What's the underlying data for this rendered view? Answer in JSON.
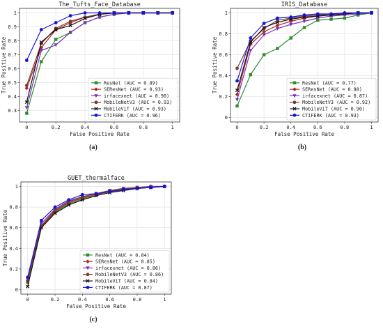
{
  "chart_data": [
    {
      "type": "line",
      "title": "The_Tufts_Face_Database",
      "xlabel": "False Positive Rate",
      "ylabel": "True Positive Rate",
      "xlim": [
        0,
        1
      ],
      "ylim": [
        0.25,
        1.0
      ],
      "xticks": [
        "0",
        "0.2",
        "0.4",
        "0.6",
        "0.8",
        "1"
      ],
      "yticks": [
        "0.3",
        "0.4",
        "0.5",
        "0.6",
        "0.7",
        "0.8",
        "0.9",
        "1"
      ],
      "legend_position": "bottom-right",
      "caption": "(a)",
      "series": [
        {
          "name": "ResNet (AUC = 0.89)",
          "color": "#2e8b2e",
          "marker": "square",
          "x": [
            0,
            0.1,
            0.2,
            0.3,
            0.4,
            0.5,
            0.6,
            0.7,
            0.8,
            0.9,
            1.0
          ],
          "y": [
            0.28,
            0.65,
            0.81,
            0.86,
            0.93,
            0.97,
            0.99,
            1.0,
            1.0,
            1.0,
            1.0
          ]
        },
        {
          "name": "SEResNet (AUC = 0.93)",
          "color": "#b22222",
          "marker": "diamond",
          "x": [
            0,
            0.1,
            0.2,
            0.3,
            0.4,
            0.5,
            0.6,
            0.7,
            0.8,
            0.9,
            1.0
          ],
          "y": [
            0.46,
            0.75,
            0.88,
            0.93,
            0.97,
            0.99,
            1.0,
            1.0,
            1.0,
            1.0,
            1.0
          ]
        },
        {
          "name": "irfacexnet (AUC = 0.90)",
          "color": "#7b2fbf",
          "marker": "triangle-down",
          "x": [
            0,
            0.1,
            0.2,
            0.3,
            0.4,
            0.5,
            0.6,
            0.7,
            0.8,
            0.9,
            1.0
          ],
          "y": [
            0.32,
            0.73,
            0.77,
            0.86,
            0.93,
            0.97,
            0.99,
            1.0,
            1.0,
            1.0,
            1.0
          ]
        },
        {
          "name": "MobileNetV3 (AUC = 0.93)",
          "color": "#7a3b2e",
          "marker": "circle",
          "x": [
            0,
            0.1,
            0.2,
            0.3,
            0.4,
            0.5,
            0.6,
            0.7,
            0.8,
            0.9,
            1.0
          ],
          "y": [
            0.48,
            0.78,
            0.89,
            0.94,
            0.97,
            0.99,
            1.0,
            1.0,
            1.0,
            1.0,
            1.0
          ]
        },
        {
          "name": "MobileViT (AUC = 0.93)",
          "color": "#111111",
          "marker": "x",
          "x": [
            0,
            0.1,
            0.2,
            0.3,
            0.4,
            0.5,
            0.6,
            0.7,
            0.8,
            0.9,
            1.0
          ],
          "y": [
            0.36,
            0.79,
            0.88,
            0.91,
            0.96,
            0.99,
            1.0,
            1.0,
            1.0,
            1.0,
            1.0
          ]
        },
        {
          "name": "CTIFERK (AUC = 0.96)",
          "color": "#1414d9",
          "marker": "circle",
          "x": [
            0,
            0.1,
            0.2,
            0.3,
            0.4,
            0.5,
            0.6,
            0.7,
            0.8,
            0.9,
            1.0
          ],
          "y": [
            0.66,
            0.88,
            0.93,
            0.98,
            1.0,
            1.0,
            1.0,
            1.0,
            1.0,
            1.0,
            1.0
          ]
        }
      ]
    },
    {
      "type": "line",
      "title": "IRIS_Database",
      "xlabel": "False Positive Rate",
      "ylabel": "True Positive Rate",
      "xlim": [
        0,
        1
      ],
      "ylim": [
        0,
        1.0
      ],
      "xticks": [
        "0",
        "0.2",
        "0.4",
        "0.6",
        "0.8",
        "1"
      ],
      "yticks": [
        "0",
        "0.2",
        "0.4",
        "0.6",
        "0.8",
        "1"
      ],
      "legend_position": "bottom-right",
      "caption": "(b)",
      "series": [
        {
          "name": "ResNet (AUC = 0.77)",
          "color": "#2e8b2e",
          "marker": "square",
          "x": [
            0,
            0.1,
            0.2,
            0.3,
            0.4,
            0.5,
            0.6,
            0.7,
            0.8,
            0.9,
            1.0
          ],
          "y": [
            0.11,
            0.41,
            0.6,
            0.66,
            0.76,
            0.86,
            0.93,
            0.94,
            0.95,
            0.98,
            1.0
          ]
        },
        {
          "name": "SEResNet (AUC = 0.88)",
          "color": "#b22222",
          "marker": "diamond",
          "x": [
            0,
            0.1,
            0.2,
            0.3,
            0.4,
            0.5,
            0.6,
            0.7,
            0.8,
            0.9,
            1.0
          ],
          "y": [
            0.22,
            0.7,
            0.82,
            0.88,
            0.92,
            0.95,
            0.97,
            0.98,
            0.99,
            1.0,
            1.0
          ]
        },
        {
          "name": "irfacexnet (AUC = 0.87)",
          "color": "#7b2fbf",
          "marker": "triangle-down",
          "x": [
            0,
            0.1,
            0.2,
            0.3,
            0.4,
            0.5,
            0.6,
            0.7,
            0.8,
            0.9,
            1.0
          ],
          "y": [
            0.17,
            0.64,
            0.79,
            0.85,
            0.89,
            0.92,
            0.95,
            0.97,
            0.98,
            0.99,
            1.0
          ]
        },
        {
          "name": "MobileNetV3 (AUC = 0.92)",
          "color": "#7a3b2e",
          "marker": "circle",
          "x": [
            0,
            0.1,
            0.2,
            0.3,
            0.4,
            0.5,
            0.6,
            0.7,
            0.8,
            0.9,
            1.0
          ],
          "y": [
            0.47,
            0.73,
            0.85,
            0.93,
            0.95,
            0.97,
            0.98,
            0.99,
            1.0,
            1.0,
            1.0
          ]
        },
        {
          "name": "MobileViT (AUC = 0.90)",
          "color": "#111111",
          "marker": "x",
          "x": [
            0,
            0.1,
            0.2,
            0.3,
            0.4,
            0.5,
            0.6,
            0.7,
            0.8,
            0.9,
            1.0
          ],
          "y": [
            0.26,
            0.72,
            0.86,
            0.91,
            0.94,
            0.96,
            0.97,
            0.98,
            0.99,
            1.0,
            1.0
          ]
        },
        {
          "name": "CTIFERK (AUC = 0.93)",
          "color": "#1414d9",
          "marker": "circle",
          "x": [
            0,
            0.1,
            0.2,
            0.3,
            0.4,
            0.5,
            0.6,
            0.7,
            0.8,
            0.9,
            1.0
          ],
          "y": [
            0.35,
            0.76,
            0.9,
            0.95,
            0.96,
            0.98,
            0.99,
            0.99,
            1.0,
            1.0,
            1.0
          ]
        }
      ]
    },
    {
      "type": "line",
      "title": "GUET_thermalface",
      "xlabel": "False Positive Rate",
      "ylabel": "True Positive Rate",
      "xlim": [
        0,
        1
      ],
      "ylim": [
        0,
        1.0
      ],
      "xticks": [
        "0",
        "0.2",
        "0.4",
        "0.6",
        "0.8",
        "1"
      ],
      "yticks": [
        "0",
        "0.2",
        "0.4",
        "0.6",
        "0.8",
        "1"
      ],
      "legend_position": "bottom-right",
      "caption": "(c)",
      "series": [
        {
          "name": "ResNet (AUC = 0.84)",
          "color": "#2e8b2e",
          "marker": "square",
          "x": [
            0,
            0.1,
            0.2,
            0.3,
            0.4,
            0.5,
            0.6,
            0.7,
            0.8,
            0.9,
            1.0
          ],
          "y": [
            0.07,
            0.61,
            0.75,
            0.83,
            0.88,
            0.92,
            0.95,
            0.97,
            0.98,
            0.99,
            1.0
          ]
        },
        {
          "name": "SEResNet (AUC = 0.85)",
          "color": "#b22222",
          "marker": "diamond",
          "x": [
            0,
            0.1,
            0.2,
            0.3,
            0.4,
            0.5,
            0.6,
            0.7,
            0.8,
            0.9,
            1.0
          ],
          "y": [
            0.09,
            0.61,
            0.76,
            0.84,
            0.89,
            0.92,
            0.95,
            0.97,
            0.99,
            1.0,
            1.0
          ]
        },
        {
          "name": "irfacexnet (AUC = 0.86)",
          "color": "#7b2fbf",
          "marker": "triangle-down",
          "x": [
            0,
            0.1,
            0.2,
            0.3,
            0.4,
            0.5,
            0.6,
            0.7,
            0.8,
            0.9,
            1.0
          ],
          "y": [
            0.1,
            0.64,
            0.78,
            0.86,
            0.9,
            0.93,
            0.96,
            0.98,
            0.99,
            1.0,
            1.0
          ]
        },
        {
          "name": "MobileNetV3 (AUC = 0.86)",
          "color": "#7a3b2e",
          "marker": "circle",
          "x": [
            0,
            0.1,
            0.2,
            0.3,
            0.4,
            0.5,
            0.6,
            0.7,
            0.8,
            0.9,
            1.0
          ],
          "y": [
            0.08,
            0.62,
            0.77,
            0.85,
            0.9,
            0.93,
            0.96,
            0.98,
            0.99,
            0.99,
            1.0
          ]
        },
        {
          "name": "MobileViT (AUC = 0.84)",
          "color": "#111111",
          "marker": "x",
          "x": [
            0,
            0.1,
            0.2,
            0.3,
            0.4,
            0.5,
            0.6,
            0.7,
            0.8,
            0.9,
            1.0
          ],
          "y": [
            0.03,
            0.6,
            0.74,
            0.82,
            0.87,
            0.91,
            0.94,
            0.96,
            0.98,
            0.99,
            1.0
          ]
        },
        {
          "name": "CTIFERK (AUC = 0.87)",
          "color": "#1414d9",
          "marker": "circle",
          "x": [
            0,
            0.1,
            0.2,
            0.3,
            0.4,
            0.5,
            0.6,
            0.7,
            0.8,
            0.9,
            1.0
          ],
          "y": [
            0.12,
            0.67,
            0.8,
            0.87,
            0.92,
            0.93,
            0.95,
            0.97,
            0.98,
            0.99,
            1.0
          ]
        }
      ]
    }
  ]
}
